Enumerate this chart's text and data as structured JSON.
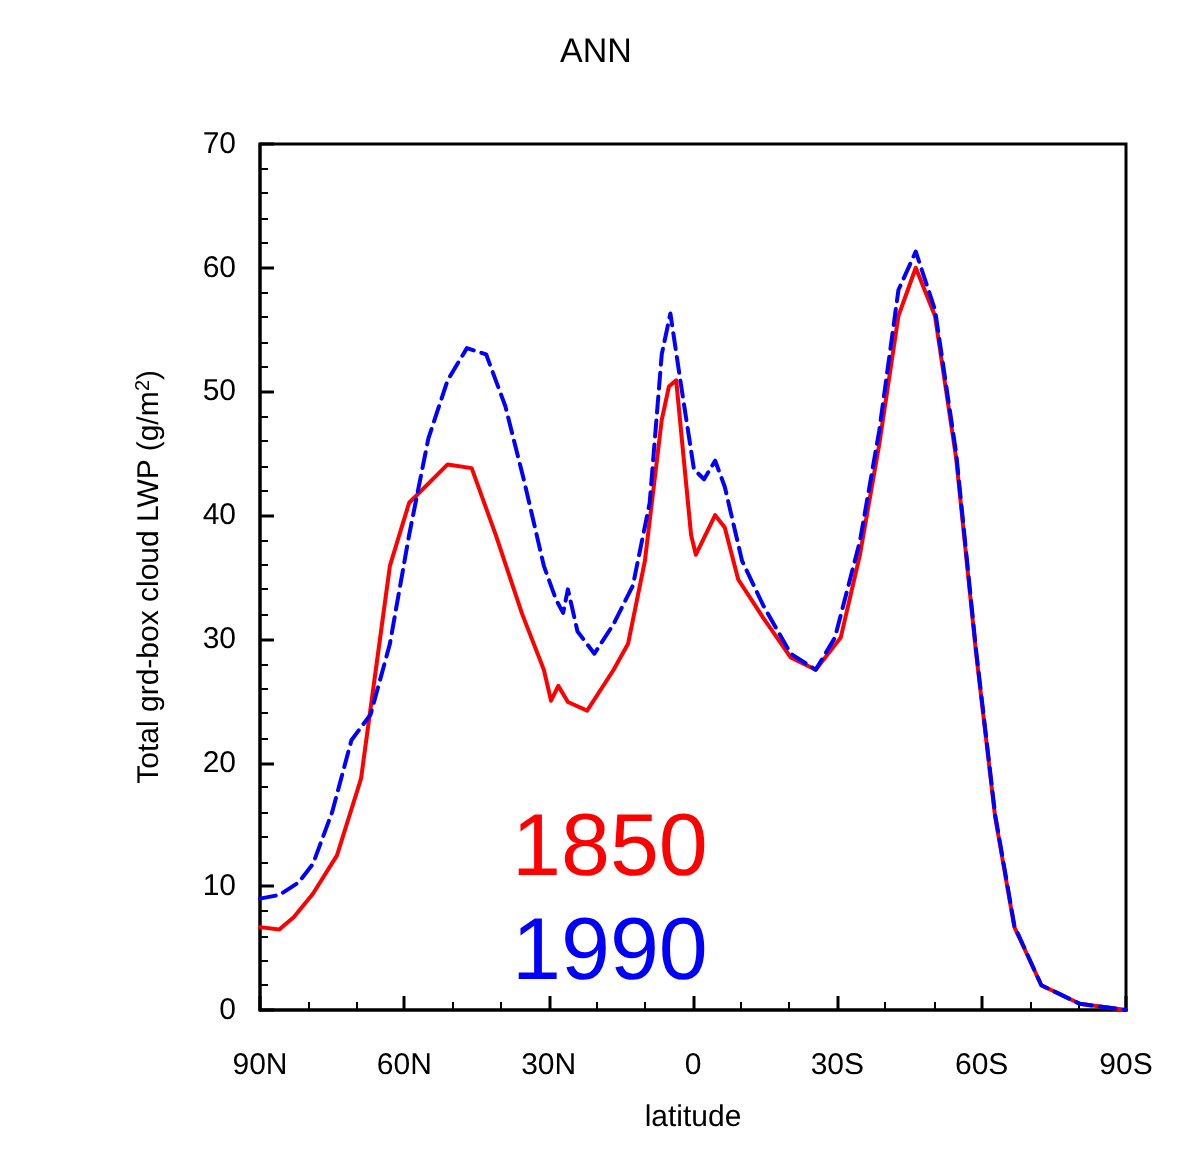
{
  "chart_data": {
    "type": "line",
    "title": "ANN",
    "xlabel": "latitude",
    "ylabel": "Total grd-box cloud LWP (g/m$^{2}$)",
    "xlim": [
      90,
      -90
    ],
    "xticks": [
      {
        "value": 90,
        "label": "90N"
      },
      {
        "value": 60,
        "label": "60N"
      },
      {
        "value": 30,
        "label": "30N"
      },
      {
        "value": 0,
        "label": "0"
      },
      {
        "value": -30,
        "label": "30S"
      },
      {
        "value": -60,
        "label": "60S"
      },
      {
        "value": -90,
        "label": "90S"
      }
    ],
    "ylim": [
      0,
      70
    ],
    "yticks": [
      0,
      10,
      20,
      30,
      40,
      50,
      60,
      70
    ],
    "grid": false,
    "legend": false,
    "marker": "none",
    "series": [
      {
        "name": "1850",
        "color": "#ff0000",
        "line_style": "solid",
        "x": [
          90,
          86,
          83,
          79,
          74,
          69,
          63,
          59,
          51,
          46,
          41,
          35.5,
          31,
          29.5,
          28,
          26,
          22,
          16.5,
          13.5,
          10,
          6.5,
          5,
          3.5,
          0.4,
          -0.6,
          -4.6,
          -6.6,
          -9.4,
          -14.6,
          -20.3,
          -25.5,
          -30.7,
          -34.7,
          -38.7,
          -42.7,
          -46.3,
          -50.3,
          -54.7,
          -58.8,
          -62.8,
          -66.8,
          -72.4,
          -80.4,
          -90
        ],
        "values": [
          6.7,
          6.5,
          7.5,
          9.4,
          12.5,
          18.7,
          35.9,
          41,
          44.1,
          43.8,
          38.4,
          32,
          27.5,
          25,
          26.2,
          24.9,
          24.2,
          27.5,
          29.6,
          36.3,
          47.7,
          50.4,
          50.9,
          38.4,
          36.8,
          40,
          39,
          34.8,
          31.7,
          28.5,
          27.5,
          30.1,
          36.8,
          45.7,
          56.1,
          60,
          56.1,
          44.6,
          29,
          15.6,
          6.7,
          2,
          0.5,
          0
        ]
      },
      {
        "name": "1990",
        "color": "#0000ff",
        "line_style": "dashed",
        "x": [
          90,
          86,
          82,
          79,
          75,
          71,
          67,
          63,
          59,
          55,
          51,
          47,
          43,
          39,
          35,
          31,
          28.5,
          27,
          26,
          24,
          20.5,
          16.5,
          12.5,
          9,
          6.5,
          4.7,
          2.6,
          -0.2,
          -2.3,
          -4.6,
          -6.6,
          -10.2,
          -14.6,
          -20.3,
          -25.5,
          -29.5,
          -34.7,
          -38.7,
          -42.7,
          -46.3,
          -50.3,
          -54.7,
          -58.8,
          -62.8,
          -66.8,
          -72.4,
          -80.4,
          -90
        ],
        "values": [
          9,
          9.3,
          10.3,
          11.8,
          16,
          21.8,
          23.9,
          29.6,
          38.4,
          46.2,
          50.9,
          53.5,
          53,
          48.8,
          42.6,
          35.9,
          33.2,
          32.1,
          34,
          30.6,
          28.8,
          31.2,
          34.3,
          41,
          53,
          56.3,
          50.8,
          43.7,
          42.9,
          44.4,
          42.3,
          36.3,
          32.7,
          28.8,
          27.5,
          30.1,
          37.9,
          46.8,
          58.2,
          61.3,
          56.6,
          45,
          29.2,
          15.8,
          6.8,
          2,
          0.5,
          0
        ]
      }
    ]
  }
}
